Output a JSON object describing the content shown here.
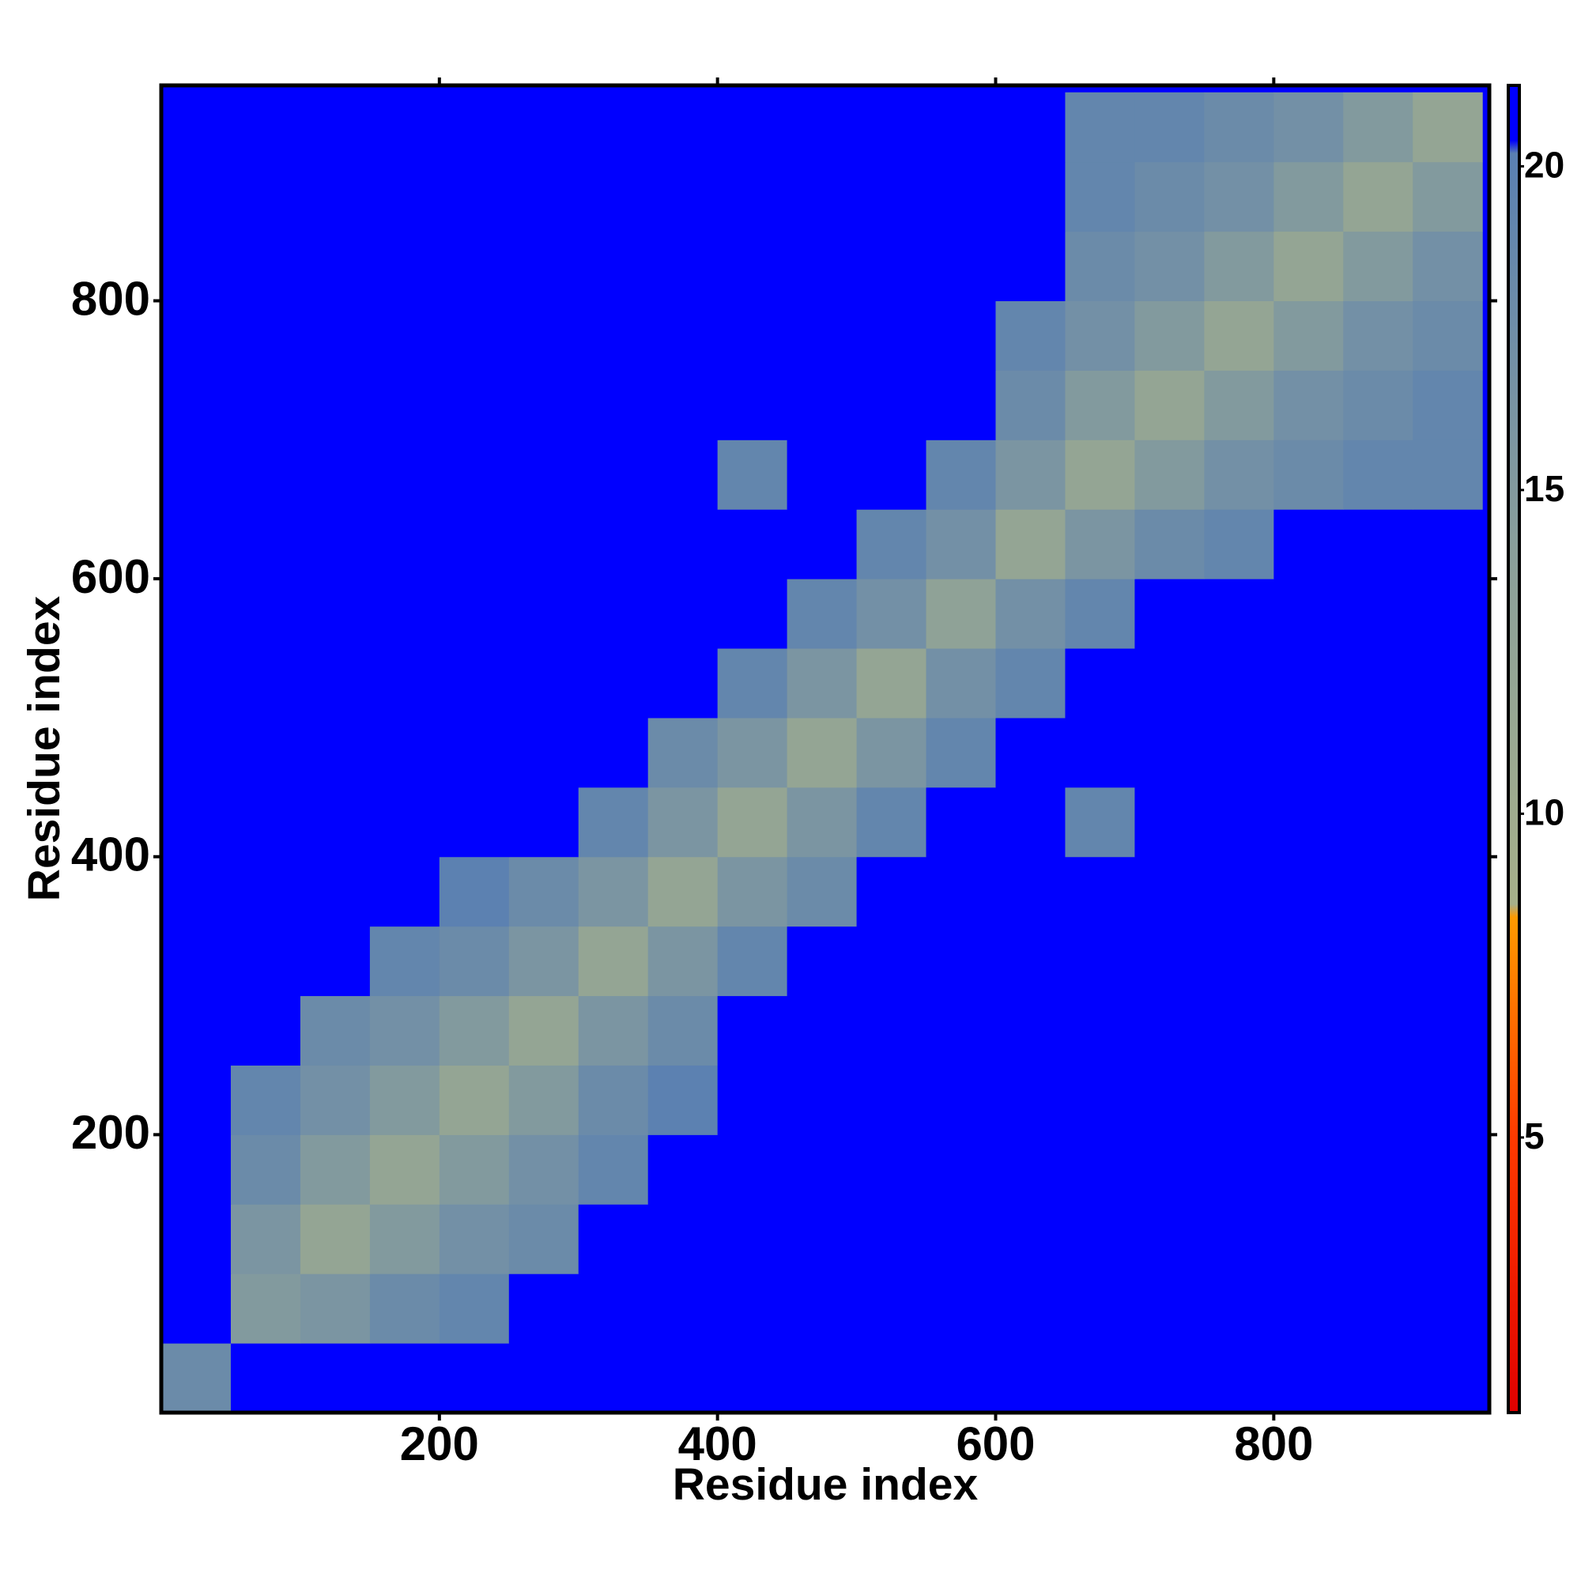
{
  "chart_data": {
    "type": "heatmap",
    "xlabel": "Residue index",
    "ylabel": "Residue index",
    "xbins": [
      0,
      50,
      100,
      150,
      200,
      250,
      300,
      350,
      400,
      450,
      500,
      550,
      600,
      650,
      700,
      750,
      800,
      850,
      900,
      950
    ],
    "ybins": [
      0,
      50,
      100,
      150,
      200,
      250,
      300,
      350,
      400,
      450,
      500,
      550,
      600,
      650,
      700,
      750,
      800,
      850,
      900,
      950
    ],
    "z": [
      [
        18,
        21,
        21,
        21,
        21,
        21,
        21,
        21,
        21,
        21,
        21,
        21,
        21,
        21,
        21,
        21,
        21,
        21,
        21
      ],
      [
        21,
        15,
        16,
        18,
        19,
        21,
        21,
        21,
        21,
        21,
        21,
        21,
        21,
        21,
        21,
        21,
        21,
        21,
        21
      ],
      [
        21,
        16,
        12,
        15,
        17,
        18,
        21,
        21,
        21,
        21,
        21,
        21,
        21,
        21,
        21,
        21,
        21,
        21,
        21
      ],
      [
        21,
        18,
        15,
        12,
        15,
        17,
        19,
        21,
        21,
        21,
        21,
        21,
        21,
        21,
        21,
        21,
        21,
        21,
        21
      ],
      [
        21,
        19,
        17,
        15,
        12,
        15,
        18,
        20,
        21,
        21,
        21,
        21,
        21,
        21,
        21,
        21,
        21,
        21,
        21
      ],
      [
        21,
        21,
        18,
        17,
        15,
        12,
        16,
        18,
        21,
        21,
        21,
        21,
        21,
        21,
        21,
        21,
        21,
        21,
        21
      ],
      [
        21,
        21,
        21,
        19,
        18,
        16,
        12,
        16,
        19,
        21,
        21,
        21,
        21,
        21,
        21,
        21,
        21,
        21,
        21
      ],
      [
        21,
        21,
        21,
        21,
        20,
        18,
        16,
        12,
        16,
        18,
        21,
        21,
        21,
        21,
        21,
        21,
        21,
        21,
        21
      ],
      [
        21,
        21,
        21,
        21,
        21,
        21,
        19,
        16,
        12,
        16,
        19,
        21,
        21,
        19,
        21,
        21,
        21,
        21,
        21
      ],
      [
        21,
        21,
        21,
        21,
        21,
        21,
        21,
        18,
        16,
        12,
        16,
        19,
        21,
        21,
        21,
        21,
        21,
        21,
        21
      ],
      [
        21,
        21,
        21,
        21,
        21,
        21,
        21,
        21,
        19,
        16,
        12,
        17,
        19,
        21,
        21,
        21,
        21,
        21,
        21
      ],
      [
        21,
        21,
        21,
        21,
        21,
        21,
        21,
        21,
        21,
        19,
        17,
        13,
        17,
        19,
        21,
        21,
        21,
        21,
        21
      ],
      [
        21,
        21,
        21,
        21,
        21,
        21,
        21,
        21,
        21,
        21,
        19,
        17,
        12,
        16,
        18,
        19,
        21,
        21,
        21
      ],
      [
        21,
        21,
        21,
        21,
        21,
        21,
        21,
        21,
        19,
        21,
        21,
        19,
        16,
        12,
        15,
        17,
        18,
        19,
        19
      ],
      [
        21,
        21,
        21,
        21,
        21,
        21,
        21,
        21,
        21,
        21,
        21,
        21,
        18,
        15,
        12,
        15,
        17,
        18,
        19
      ],
      [
        21,
        21,
        21,
        21,
        21,
        21,
        21,
        21,
        21,
        21,
        21,
        21,
        19,
        17,
        15,
        12,
        15,
        17,
        18
      ],
      [
        21,
        21,
        21,
        21,
        21,
        21,
        21,
        21,
        21,
        21,
        21,
        21,
        21,
        18,
        17,
        15,
        12,
        15,
        17
      ],
      [
        21,
        21,
        21,
        21,
        21,
        21,
        21,
        21,
        21,
        21,
        21,
        21,
        21,
        19,
        18,
        17,
        15,
        12,
        15
      ],
      [
        21,
        21,
        21,
        21,
        21,
        21,
        21,
        21,
        21,
        21,
        21,
        21,
        21,
        19,
        19,
        18,
        17,
        15,
        12
      ]
    ],
    "xlim": [
      0,
      955
    ],
    "ylim": [
      0,
      955
    ],
    "xticks": [
      200,
      400,
      600,
      800
    ],
    "yticks": [
      200,
      400,
      600,
      800
    ],
    "colorbar": {
      "lim": [
        0.75,
        21.25
      ],
      "ticks": [
        5,
        10,
        15,
        20
      ]
    },
    "colorscale": [
      [
        0.75,
        "#e00000"
      ],
      [
        5,
        "#ff3a00"
      ],
      [
        8.4,
        "#ff9a00"
      ],
      [
        8.6,
        "#a6b08a"
      ],
      [
        14,
        "#8a9f9a"
      ],
      [
        20.2,
        "#5a80b2"
      ],
      [
        20.4,
        "#0000ff"
      ],
      [
        21.25,
        "#0000ff"
      ]
    ]
  }
}
